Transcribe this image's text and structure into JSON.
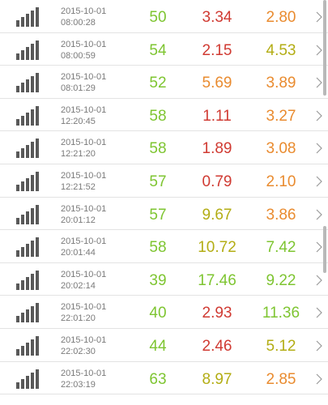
{
  "colors": {
    "green": "#7ec531",
    "red": "#d03a32",
    "orange": "#e98b2f",
    "olive": "#b3ad14",
    "signal": "#595959",
    "chevron": "#9a9a9a",
    "divider": "#e3e3e3"
  },
  "icons": {
    "signal": "signal-strength-icon",
    "chevron": "chevron-right-icon"
  },
  "rows": [
    {
      "date": "2015-10-01",
      "time": "08:00:28",
      "v1": "50",
      "v2": "3.34",
      "v3": "2.80",
      "c1": "#7ec531",
      "c2": "#d03a32",
      "c3": "#e98b2f"
    },
    {
      "date": "2015-10-01",
      "time": "08:00:59",
      "v1": "54",
      "v2": "2.15",
      "v3": "4.53",
      "c1": "#7ec531",
      "c2": "#d03a32",
      "c3": "#b3ad14"
    },
    {
      "date": "2015-10-01",
      "time": "08:01:29",
      "v1": "52",
      "v2": "5.69",
      "v3": "3.89",
      "c1": "#7ec531",
      "c2": "#e98b2f",
      "c3": "#e98b2f"
    },
    {
      "date": "2015-10-01",
      "time": "12:20:45",
      "v1": "58",
      "v2": "1.11",
      "v3": "3.27",
      "c1": "#7ec531",
      "c2": "#d03a32",
      "c3": "#e98b2f"
    },
    {
      "date": "2015-10-01",
      "time": "12:21:20",
      "v1": "58",
      "v2": "1.89",
      "v3": "3.08",
      "c1": "#7ec531",
      "c2": "#d03a32",
      "c3": "#e98b2f"
    },
    {
      "date": "2015-10-01",
      "time": "12:21:52",
      "v1": "57",
      "v2": "0.79",
      "v3": "2.10",
      "c1": "#7ec531",
      "c2": "#d03a32",
      "c3": "#e98b2f"
    },
    {
      "date": "2015-10-01",
      "time": "20:01:12",
      "v1": "57",
      "v2": "9.67",
      "v3": "3.86",
      "c1": "#7ec531",
      "c2": "#b3ad14",
      "c3": "#e98b2f"
    },
    {
      "date": "2015-10-01",
      "time": "20:01:44",
      "v1": "58",
      "v2": "10.72",
      "v3": "7.42",
      "c1": "#7ec531",
      "c2": "#b3ad14",
      "c3": "#7ec531"
    },
    {
      "date": "2015-10-01",
      "time": "20:02:14",
      "v1": "39",
      "v2": "17.46",
      "v3": "9.22",
      "c1": "#7ec531",
      "c2": "#7ec531",
      "c3": "#7ec531"
    },
    {
      "date": "2015-10-01",
      "time": "22:01:20",
      "v1": "40",
      "v2": "2.93",
      "v3": "11.36",
      "c1": "#7ec531",
      "c2": "#d03a32",
      "c3": "#7ec531"
    },
    {
      "date": "2015-10-01",
      "time": "22:02:30",
      "v1": "44",
      "v2": "2.46",
      "v3": "5.12",
      "c1": "#7ec531",
      "c2": "#d03a32",
      "c3": "#b3ad14"
    },
    {
      "date": "2015-10-01",
      "time": "22:03:19",
      "v1": "63",
      "v2": "8.97",
      "v3": "2.85",
      "c1": "#7ec531",
      "c2": "#b3ad14",
      "c3": "#e98b2f"
    }
  ]
}
